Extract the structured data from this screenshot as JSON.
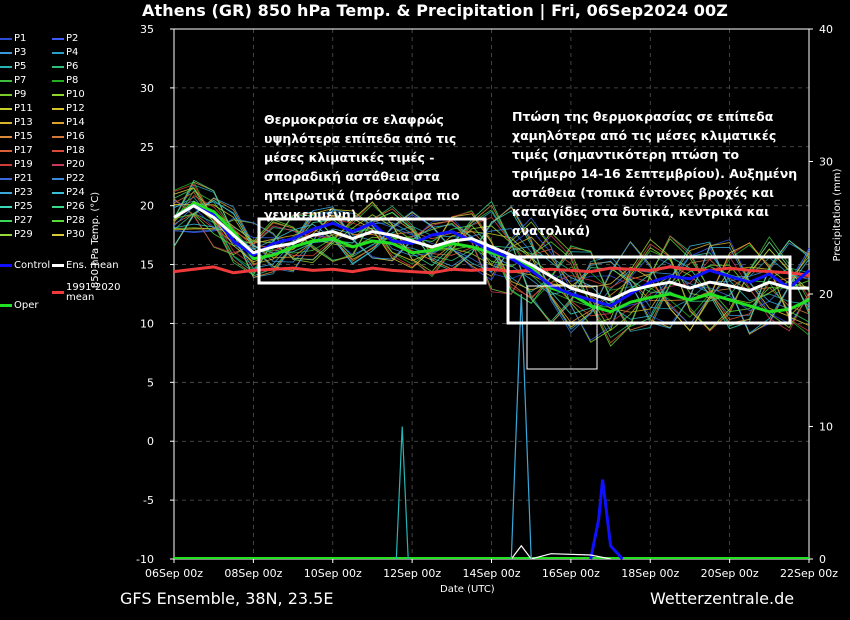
{
  "header": {
    "title": "Athens  (GR)  850 hPa Temp. & Precipitation | Fri, 06Sep2024 00Z"
  },
  "footer": {
    "model": "GFS Ensemble, 38N, 23.5E",
    "site": "Wetterzentrale.de"
  },
  "annotations": {
    "left_box_text": "Θερμοκρασία σε ελαφρώς υψηλότερα επίπεδα από τις μέσες κλιματικές τιμές - σποραδική αστάθεια στα ηπειρωτικά (πρόσκαιρα πιο γενικευμένη)",
    "right_box_text": "Πτώση της θερμοκρασίας σε επίπεδα χαμηλότερα από τις μέσες κλιματικές τιμές (σημαντικότερη πτώση το τριήμερο 14-16 Σεπτεμβρίου). Αυξημένη αστάθεια (τοπικά έντονες βροχές και καταιγίδες στα δυτικά, κεντρικά και ανατολικά)"
  },
  "legend": {
    "items": [
      {
        "label": "P1",
        "color": "#2a4bd7"
      },
      {
        "label": "P2",
        "color": "#3b5bff"
      },
      {
        "label": "P3",
        "color": "#3a9ad9"
      },
      {
        "label": "P4",
        "color": "#2aa0c8"
      },
      {
        "label": "P5",
        "color": "#26b5b5"
      },
      {
        "label": "P6",
        "color": "#2fbf7a"
      },
      {
        "label": "P7",
        "color": "#3fbf3f"
      },
      {
        "label": "P8",
        "color": "#22b022"
      },
      {
        "label": "P9",
        "color": "#7ccf2a"
      },
      {
        "label": "P10",
        "color": "#8fd62c"
      },
      {
        "label": "P11",
        "color": "#c7cf2a"
      },
      {
        "label": "P12",
        "color": "#d6c22a"
      },
      {
        "label": "P13",
        "color": "#d9b52a"
      },
      {
        "label": "P14",
        "color": "#e0a030"
      },
      {
        "label": "P15",
        "color": "#d98b3a"
      },
      {
        "label": "P16",
        "color": "#d2783a"
      },
      {
        "label": "P17",
        "color": "#d9603a"
      },
      {
        "label": "P18",
        "color": "#d94a3a"
      },
      {
        "label": "P19",
        "color": "#d53a3a"
      },
      {
        "label": "P20",
        "color": "#c83a5a"
      },
      {
        "label": "P21",
        "color": "#3a6ad9"
      },
      {
        "label": "P22",
        "color": "#3a8ad9"
      },
      {
        "label": "P23",
        "color": "#3aa8d9"
      },
      {
        "label": "P24",
        "color": "#3ac0d9"
      },
      {
        "label": "P25",
        "color": "#3ad9b8"
      },
      {
        "label": "P26",
        "color": "#3ad98a"
      },
      {
        "label": "P27",
        "color": "#3ad95a"
      },
      {
        "label": "P28",
        "color": "#5ad93a"
      },
      {
        "label": "P29",
        "color": "#9ad93a"
      },
      {
        "label": "P30",
        "color": "#d9c83a"
      },
      {
        "label": "Control",
        "color": "#1010ff"
      },
      {
        "label": "Ens. mean",
        "color": "#ffffff"
      },
      {
        "label": "Oper",
        "color": "#22e022"
      },
      {
        "label": "1991-2020 mean",
        "color": "#ee3a3a"
      }
    ]
  },
  "chart_data": {
    "type": "line",
    "title": "Athens  (GR)  850 hPa Temp. & Precipitation | Fri, 06Sep2024 00Z",
    "xlabel": "Date (UTC)",
    "ylabel": "850 hPa Temp. (°C)",
    "y2label": "Precipitation (mm)",
    "x_ticks": [
      "06Sep 00z",
      "08Sep 00z",
      "10Sep 00z",
      "12Sep 00z",
      "14Sep 00z",
      "16Sep 00z",
      "18Sep 00z",
      "20Sep 00z",
      "22Sep 00z"
    ],
    "xlim": [
      0,
      16
    ],
    "ylim": [
      -10,
      35
    ],
    "y2lim": [
      0,
      40
    ],
    "y_ticks": [
      -10,
      -5,
      0,
      5,
      10,
      15,
      20,
      25,
      30,
      35
    ],
    "y2_ticks": [
      0,
      10,
      20,
      30,
      40
    ],
    "grid": true,
    "legend_position": "left-outside",
    "x_unit": "days since 06Sep 00z",
    "series": [
      {
        "name": "Ens. mean",
        "color": "#ffffff",
        "x": [
          0,
          0.5,
          1,
          1.5,
          2,
          2.5,
          3,
          3.5,
          4,
          4.5,
          5,
          5.5,
          6,
          6.5,
          7,
          7.5,
          8,
          8.5,
          9,
          9.5,
          10,
          10.5,
          11,
          11.5,
          12,
          12.5,
          13,
          13.5,
          14,
          14.5,
          15,
          15.5,
          16
        ],
        "y": [
          19.0,
          20.0,
          19.0,
          17.5,
          16.0,
          16.5,
          16.8,
          17.5,
          17.8,
          17.2,
          17.8,
          17.5,
          17.0,
          16.5,
          17.0,
          17.2,
          16.5,
          15.8,
          15.0,
          14.0,
          13.0,
          12.5,
          12.0,
          12.8,
          13.2,
          13.5,
          13.0,
          13.5,
          13.2,
          12.8,
          13.5,
          13.0,
          13.0
        ]
      },
      {
        "name": "Control",
        "color": "#1010ff",
        "x": [
          0,
          0.5,
          1,
          1.5,
          2,
          2.5,
          3,
          3.5,
          4,
          4.5,
          5,
          5.5,
          6,
          6.5,
          7,
          7.5,
          8,
          8.5,
          9,
          9.5,
          10,
          10.5,
          11,
          11.5,
          12,
          12.5,
          13,
          13.5,
          14,
          14.5,
          15,
          15.5,
          16
        ],
        "y": [
          19.0,
          20.0,
          19.2,
          17.0,
          15.8,
          16.8,
          17.2,
          18.0,
          18.5,
          17.8,
          18.5,
          17.0,
          16.8,
          17.5,
          17.8,
          17.0,
          16.2,
          15.5,
          14.5,
          13.2,
          12.5,
          12.0,
          11.5,
          12.5,
          13.5,
          14.0,
          13.8,
          14.5,
          14.0,
          13.5,
          14.2,
          13.0,
          14.5
        ]
      },
      {
        "name": "Oper",
        "color": "#22e022",
        "x": [
          0,
          0.5,
          1,
          1.5,
          2,
          2.5,
          3,
          3.5,
          4,
          4.5,
          5,
          5.5,
          6,
          6.5,
          7,
          7.5,
          8,
          8.5,
          9,
          9.5,
          10,
          10.5,
          11,
          11.5,
          12,
          12.5,
          13,
          13.5,
          14,
          14.5,
          15,
          15.5,
          16
        ],
        "y": [
          19.0,
          20.2,
          19.5,
          17.8,
          15.5,
          15.8,
          16.5,
          17.0,
          17.2,
          16.5,
          17.0,
          16.8,
          16.0,
          16.2,
          16.8,
          16.5,
          16.0,
          15.5,
          14.8,
          13.0,
          12.5,
          11.5,
          11.0,
          11.8,
          12.2,
          12.5,
          12.0,
          12.5,
          12.0,
          11.5,
          11.0,
          11.2,
          12.0
        ]
      },
      {
        "name": "1991-2020 mean",
        "color": "#ee3a3a",
        "x": [
          0,
          0.5,
          1,
          1.5,
          2,
          2.5,
          3,
          3.5,
          4,
          4.5,
          5,
          5.5,
          6,
          6.5,
          7,
          7.5,
          8,
          8.5,
          9,
          9.5,
          10,
          10.5,
          11,
          11.5,
          12,
          12.5,
          13,
          13.5,
          14,
          14.5,
          15,
          15.5,
          16
        ],
        "y": [
          14.4,
          14.6,
          14.8,
          14.3,
          14.5,
          14.6,
          14.7,
          14.5,
          14.6,
          14.4,
          14.7,
          14.5,
          14.4,
          14.3,
          14.6,
          14.5,
          14.6,
          14.4,
          14.5,
          14.6,
          14.5,
          14.4,
          14.7,
          14.6,
          14.5,
          14.8,
          14.6,
          14.5,
          14.7,
          14.5,
          14.4,
          14.3,
          14.1
        ]
      }
    ],
    "precipitation": [
      {
        "name": "Control",
        "color": "#1010ff",
        "x": [
          10.5,
          10.7,
          10.8,
          11.0,
          11.3
        ],
        "y": [
          0,
          3,
          6,
          1,
          0
        ]
      },
      {
        "name": "Ens. mean",
        "color": "#ffffff",
        "x": [
          8.5,
          8.75,
          9.0,
          9.5,
          10.5,
          11.0
        ],
        "y": [
          0,
          1,
          0,
          0.4,
          0.3,
          0
        ]
      },
      {
        "name": "P23",
        "color": "#3aa8d9",
        "x": [
          8.5,
          8.75,
          9.0
        ],
        "y": [
          0,
          20,
          0
        ]
      },
      {
        "name": "P5",
        "color": "#26b5b5",
        "x": [
          5.6,
          5.75,
          5.9
        ],
        "y": [
          0,
          10,
          0
        ]
      }
    ]
  }
}
